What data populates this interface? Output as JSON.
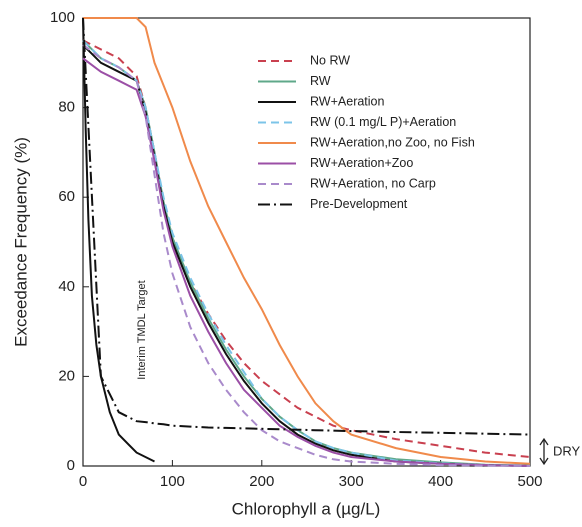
{
  "chart_data": {
    "type": "line",
    "x_label": "Chlorophyll a (µg/L)",
    "y_label": "Exceedance Frequency (%)",
    "xlim": [
      0,
      500
    ],
    "ylim": [
      0,
      100
    ],
    "xticks": [
      0,
      100,
      200,
      300,
      400,
      500
    ],
    "yticks": [
      0,
      20,
      40,
      60,
      80,
      100
    ],
    "x": [
      0,
      20,
      40,
      60,
      70,
      80,
      90,
      100,
      120,
      140,
      160,
      180,
      200,
      220,
      240,
      260,
      280,
      300,
      350,
      400,
      450,
      500
    ],
    "series": [
      {
        "name": "No RW",
        "color": "#c9404f",
        "dash": "dashed",
        "values": [
          95,
          93,
          91,
          87,
          80,
          70,
          59,
          51,
          41,
          34,
          28,
          23,
          19,
          16,
          13,
          11,
          9,
          8,
          6,
          4.5,
          3,
          2
        ]
      },
      {
        "name": "RW",
        "color": "#5fa88a",
        "dash": "solid",
        "values": [
          95,
          91,
          89,
          86,
          80,
          70,
          59,
          51,
          41,
          33,
          26,
          20,
          15,
          11,
          8,
          5.5,
          4,
          3,
          1.5,
          0.8,
          0.3,
          0.1
        ]
      },
      {
        "name": "RW+Aeration",
        "color": "#111111",
        "dash": "solid",
        "values": [
          94,
          90,
          88,
          86,
          79,
          69,
          58,
          50,
          40,
          32,
          25,
          19,
          14,
          10,
          7,
          5,
          3.5,
          2.5,
          1,
          0.5,
          0.2,
          0
        ]
      },
      {
        "name": "RW (0.1 mg/L P)+Aeration",
        "color": "#7cc4e8",
        "dash": "dashed",
        "values": [
          95,
          91,
          89,
          86,
          80,
          70,
          60,
          52,
          42,
          34,
          27,
          21,
          15,
          11,
          8,
          5.5,
          4,
          3,
          1.2,
          0.6,
          0.2,
          0
        ]
      },
      {
        "name": "RW+Aeration,no Zoo, no Fish",
        "color": "#f08a4b",
        "dash": "solid",
        "values": [
          100,
          100,
          100,
          100,
          98,
          90,
          85,
          80,
          68,
          58,
          50,
          42,
          35,
          27,
          20,
          14,
          10,
          7,
          4,
          2,
          1,
          0.5
        ]
      },
      {
        "name": "RW+Aeration+Zoo",
        "color": "#9b4fa6",
        "dash": "solid",
        "values": [
          91,
          88,
          86,
          84,
          78,
          68,
          57,
          49,
          38,
          30,
          23,
          17,
          13,
          9,
          6.5,
          4.5,
          3,
          2,
          1,
          0.5,
          0.2,
          0
        ]
      },
      {
        "name": "RW+Aeration, no Carp",
        "color": "#a98acb",
        "dash": "dashed",
        "values": [
          94,
          91,
          89,
          86,
          78,
          65,
          52,
          43,
          31,
          23,
          17,
          12,
          8,
          5.5,
          4,
          2.5,
          1.5,
          1,
          0.5,
          0.2,
          0.1,
          0
        ]
      },
      {
        "name": "Pre-Development",
        "color": "#111111",
        "dash": "dashdot",
        "values": [
          100,
          20,
          12,
          10,
          9.8,
          9.5,
          9.3,
          9,
          8.8,
          8.6,
          8.5,
          8.4,
          8.3,
          8.2,
          8.1,
          8,
          7.9,
          7.8,
          7.6,
          7.4,
          7.2,
          7
        ]
      }
    ],
    "target_curve": {
      "label": "Interim TMDL Target",
      "color": "#111111",
      "x": [
        0,
        3,
        6,
        10,
        15,
        20,
        30,
        40,
        60,
        80
      ],
      "values": [
        100,
        75,
        55,
        38,
        27,
        20,
        12,
        7,
        3,
        1
      ]
    },
    "dry_label": "DRY",
    "legend": "upper right"
  }
}
